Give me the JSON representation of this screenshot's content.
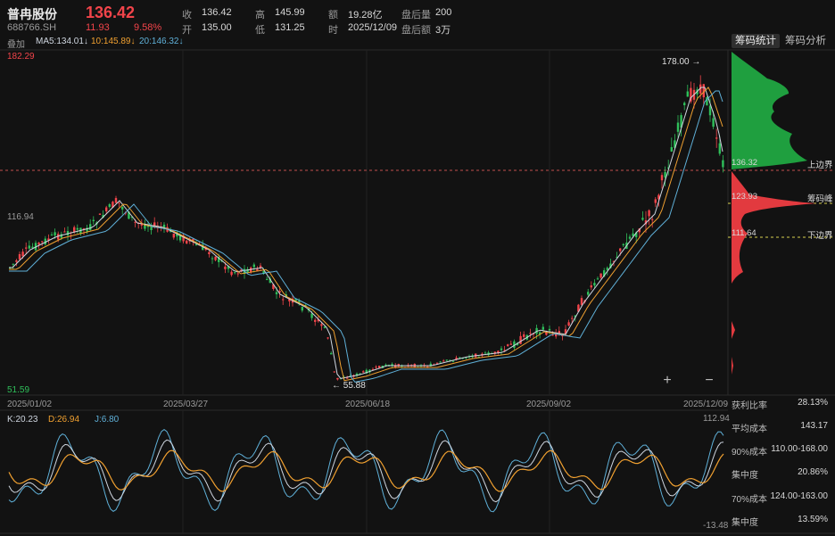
{
  "header": {
    "name": "普冉股份",
    "code": "688766.SH",
    "price": "136.42",
    "change": "11.93",
    "change_pct": "9.58%",
    "fields": {
      "close_label": "收",
      "close": "136.42",
      "open_label": "开",
      "open": "135.00",
      "high_label": "高",
      "high": "145.99",
      "low_label": "低",
      "low": "131.25",
      "amount_label": "额",
      "amount": "19.28亿",
      "time_label": "时",
      "time": "2025/12/09",
      "after_vol_label": "盘后量",
      "after_vol": "200",
      "after_amt_label": "盘后额",
      "after_amt": "3万"
    }
  },
  "ma_bar": {
    "overlay": "叠加",
    "ma5": "MA5:134.01↓",
    "ma10": "10:145.89↓",
    "ma20": "20:146.32↓"
  },
  "tabs": {
    "chip_stats": "筹码统计",
    "chip_analysis": "筹码分析"
  },
  "price_axis": {
    "top": "182.29",
    "mid": "116.94",
    "bottom": "51.59"
  },
  "annotations": {
    "high_mark": "178.00",
    "low_mark": "55.88"
  },
  "dates": [
    "2025/01/02",
    "2025/03/27",
    "2025/06/18",
    "2025/09/02",
    "2025/12/09"
  ],
  "zoom": {
    "in": "+",
    "out": "−"
  },
  "chip_labels": {
    "current": "136.32",
    "upper": "上边界",
    "peak_value": "123.93",
    "peak": "筹码峰",
    "lower_value": "111.64",
    "lower": "下边界"
  },
  "stats": [
    {
      "label": "获利比率",
      "value": "28.13%"
    },
    {
      "label": "平均成本",
      "value": "143.17"
    },
    {
      "label": "90%成本",
      "value": "110.00-168.00"
    },
    {
      "label": "集中度",
      "value": "20.86%"
    },
    {
      "label": "70%成本",
      "value": "124.00-163.00"
    },
    {
      "label": "集中度",
      "value": "13.59%"
    }
  ],
  "kdj": {
    "k": "K:20.23",
    "d": "D:26.94",
    "j": "J:6.80",
    "top": "112.94",
    "bottom": "-13.48"
  },
  "colors": {
    "up": "#f2444a",
    "down": "#2fbf5a",
    "ma5": "#cfd6e0",
    "ma10": "#f0a030",
    "ma20": "#5fb0d8",
    "bg": "#121212"
  }
}
